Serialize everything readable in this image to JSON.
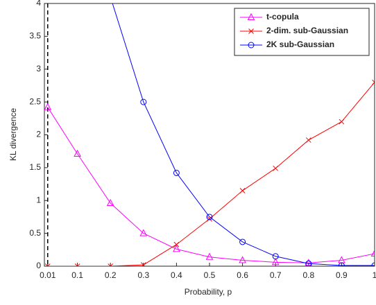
{
  "chart_data": {
    "type": "line",
    "xlabel": "Probability, p",
    "ylabel": "KL divergence",
    "x": [
      0.01,
      0.1,
      0.2,
      0.3,
      0.4,
      0.5,
      0.6,
      0.7,
      0.8,
      0.9,
      1
    ],
    "series": [
      {
        "name": "t-copula",
        "color": "#ff00ff",
        "marker": "triangle",
        "values": [
          2.42,
          1.71,
          0.96,
          0.5,
          0.26,
          0.14,
          0.09,
          0.06,
          0.05,
          0.09,
          0.19
        ]
      },
      {
        "name": "2-dim. sub-Gaussian",
        "color": "#ff0000",
        "marker": "x",
        "values": [
          0,
          0,
          0,
          0.02,
          0.33,
          0.72,
          1.15,
          1.49,
          1.92,
          2.2,
          2.8
        ]
      },
      {
        "name": "2K sub-Gaussian",
        "color": "#0000ff",
        "marker": "circle",
        "values": [
          null,
          null,
          4.1,
          2.5,
          1.42,
          0.75,
          0.37,
          0.15,
          0.04,
          0.01,
          0.01
        ]
      }
    ],
    "vline": 0.01,
    "xlim": [
      0,
      1
    ],
    "ylim": [
      0,
      4
    ],
    "xticks": [
      0.01,
      0.1,
      0.2,
      0.3,
      0.4,
      0.5,
      0.6,
      0.7,
      0.8,
      0.9,
      1
    ],
    "yticks": [
      0,
      0.5,
      1,
      1.5,
      2,
      2.5,
      3,
      3.5,
      4
    ],
    "legend": "upper right"
  }
}
